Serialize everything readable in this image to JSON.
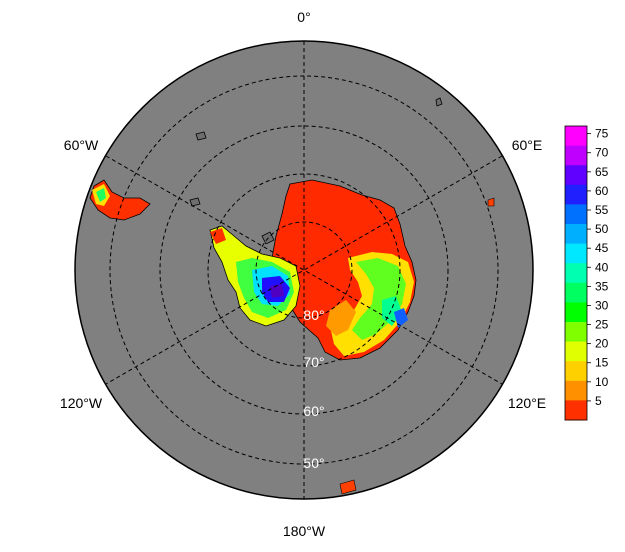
{
  "map": {
    "projection": "south-polar-stereographic",
    "ocean_color": "#808080",
    "coast_color": "#000000",
    "longitude_labels": [
      "0°",
      "60°E",
      "120°E",
      "180°W",
      "120°W",
      "60°W"
    ],
    "latitude_labels": [
      "80°",
      "70°",
      "60°",
      "50°"
    ]
  },
  "colorbar": {
    "ticks": [
      "75",
      "70",
      "65",
      "60",
      "55",
      "50",
      "45",
      "40",
      "35",
      "30",
      "25",
      "20",
      "15",
      "10",
      "5"
    ],
    "colors": [
      "#ff00ff",
      "#c000ff",
      "#6000ff",
      "#2020ff",
      "#0070ff",
      "#00b0ff",
      "#00e8ff",
      "#00ffb0",
      "#00ff60",
      "#00ff00",
      "#80ff00",
      "#e0ff00",
      "#ffd000",
      "#ff9000",
      "#ff3000"
    ],
    "min": 0,
    "max": 77
  }
}
